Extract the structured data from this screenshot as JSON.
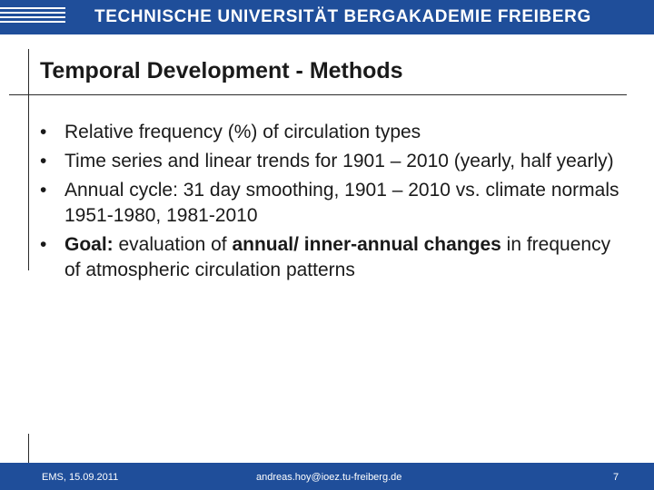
{
  "header": {
    "title": "TECHNISCHE UNIVERSITÄT BERGAKADEMIE FREIBERG"
  },
  "slide": {
    "title": "Temporal Development - Methods",
    "bullets": [
      {
        "text": "Relative frequency (%) of circulation types"
      },
      {
        "text": "Time series and linear trends for 1901 – 2010 (yearly, half yearly)"
      },
      {
        "text": "Annual cycle: 31 day smoothing, 1901 – 2010 vs. climate normals 1951-1980, 1981-2010"
      },
      {
        "goal_label": "Goal:",
        "goal_part1": " evaluation of ",
        "goal_bold": "annual/ inner-annual changes",
        "goal_part2": " in frequency of atmospheric circulation patterns"
      }
    ]
  },
  "footer": {
    "date": "EMS, 15.09.2011",
    "email": "andreas.hoy@ioez.tu-freiberg.de",
    "page_number": "7"
  },
  "colors": {
    "brand_blue": "#1f4e9a"
  }
}
